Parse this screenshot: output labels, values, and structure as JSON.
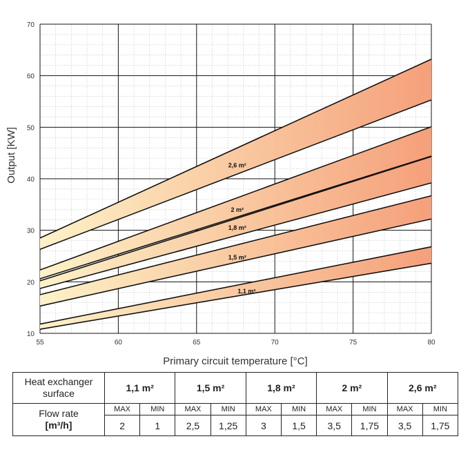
{
  "chart_data": {
    "type": "area",
    "title": "",
    "xlabel": "Primary circuit temperature [°C]",
    "ylabel": "Output [KW]",
    "xlim": [
      55,
      80
    ],
    "ylim": [
      10,
      70
    ],
    "x_ticks": [
      55,
      60,
      65,
      70,
      75,
      80
    ],
    "y_ticks": [
      10,
      20,
      30,
      40,
      50,
      60,
      70
    ],
    "grid": "major solid, minor dotted",
    "fill_gradient": [
      "#fdf2c8",
      "#f5a07a"
    ],
    "series": [
      {
        "name": "1,1 m²",
        "x": [
          55,
          80
        ],
        "max": [
          11.8,
          26.8
        ],
        "min": [
          10.8,
          23.6
        ],
        "label_at": [
          68.2,
          18.2
        ]
      },
      {
        "name": "1,5 m²",
        "x": [
          55,
          80
        ],
        "max": [
          17.5,
          36.7
        ],
        "min": [
          15.3,
          32.2
        ],
        "label_at": [
          67.6,
          24.7
        ]
      },
      {
        "name": "1,8 m²",
        "x": [
          55,
          80
        ],
        "max": [
          20.2,
          44.3
        ],
        "min": [
          18.7,
          39.2
        ],
        "label_at": [
          67.6,
          30.5
        ]
      },
      {
        "name": "2 m²",
        "x": [
          55,
          80
        ],
        "max": [
          22.3,
          50.1
        ],
        "min": [
          20.6,
          44.4
        ],
        "label_at": [
          67.6,
          34.0
        ]
      },
      {
        "name": "2,6 m²",
        "x": [
          55,
          80
        ],
        "max": [
          28.5,
          63.2
        ],
        "min": [
          26.3,
          55.3
        ],
        "label_at": [
          67.6,
          42.6
        ]
      }
    ]
  },
  "table": {
    "row1_label": [
      "Heat exchanger",
      "surface"
    ],
    "surfaces": [
      "1,1 m²",
      "1,5 m²",
      "1,8 m²",
      "2 m²",
      "2,6 m²"
    ],
    "minmax": [
      "MAX",
      "MIN"
    ],
    "row2_label": [
      "Flow rate",
      "[m³/h]"
    ],
    "flow_rates": [
      [
        "2",
        "1"
      ],
      [
        "2,5",
        "1,25"
      ],
      [
        "3",
        "1,5"
      ],
      [
        "3,5",
        "1,75"
      ],
      [
        "3,5",
        "1,75"
      ]
    ]
  }
}
